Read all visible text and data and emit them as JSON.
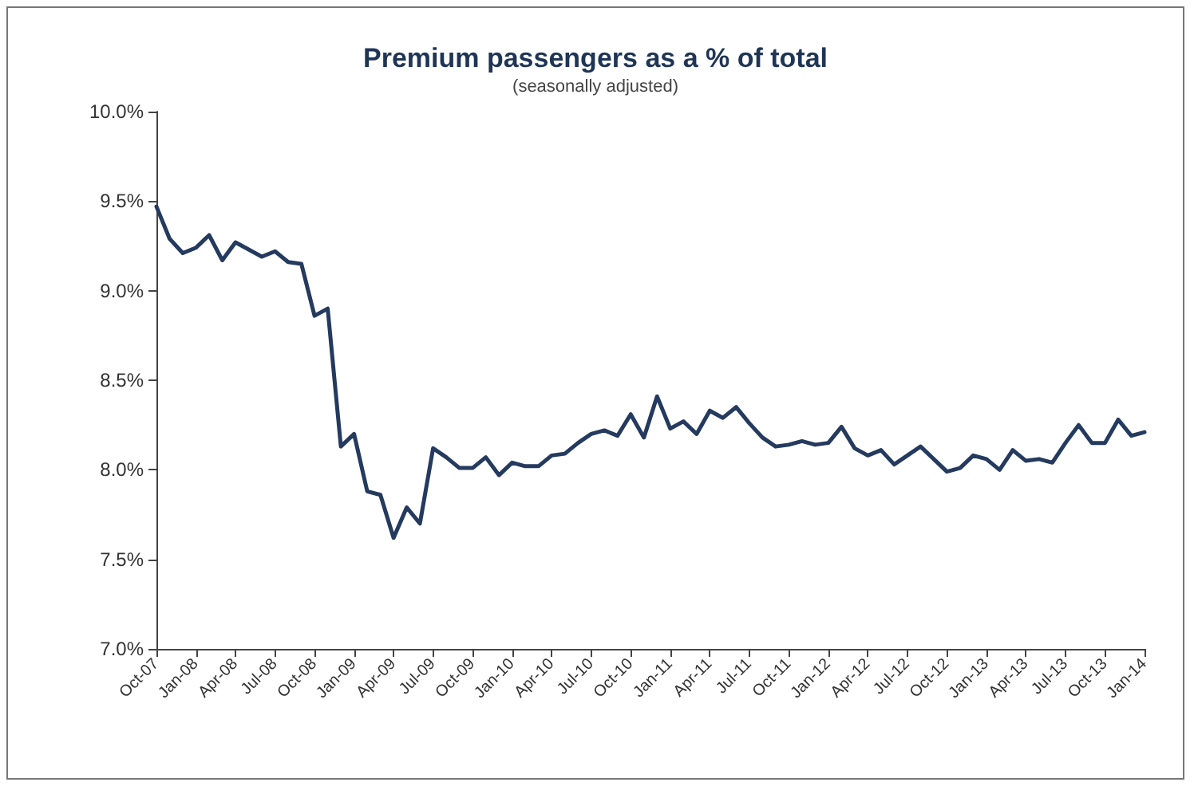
{
  "chart_data": {
    "type": "line",
    "title": "Premium passengers as a % of total",
    "subtitle": "(seasonally adjusted)",
    "categories": [
      "Oct-07",
      null,
      null,
      "Jan-08",
      null,
      null,
      "Apr-08",
      null,
      null,
      "Jul-08",
      null,
      null,
      "Oct-08",
      null,
      null,
      "Jan-09",
      null,
      null,
      "Apr-09",
      null,
      null,
      "Jul-09",
      null,
      null,
      "Oct-09",
      null,
      null,
      "Jan-10",
      null,
      null,
      "Apr-10",
      null,
      null,
      "Jul-10",
      null,
      null,
      "Oct-10",
      null,
      null,
      "Jan-11",
      null,
      null,
      "Apr-11",
      null,
      null,
      "Jul-11",
      null,
      null,
      "Oct-11",
      null,
      null,
      "Jan-12",
      null,
      null,
      "Apr-12",
      null,
      null,
      "Jul-12",
      null,
      null,
      "Oct-12",
      null,
      null,
      "Jan-13",
      null,
      null,
      "Apr-13",
      null,
      null,
      "Jul-13",
      null,
      null,
      "Oct-13",
      null,
      null,
      "Jan-14"
    ],
    "series": [
      {
        "color": "#243a5e",
        "values": [
          9.47,
          9.29,
          9.21,
          9.24,
          9.31,
          9.17,
          9.27,
          9.23,
          9.19,
          9.22,
          9.16,
          9.15,
          8.86,
          8.9,
          8.13,
          8.2,
          7.88,
          7.86,
          7.62,
          7.79,
          7.7,
          8.12,
          8.07,
          8.01,
          8.01,
          8.07,
          7.97,
          8.04,
          8.02,
          8.02,
          8.08,
          8.09,
          8.15,
          8.2,
          8.22,
          8.19,
          8.31,
          8.18,
          8.41,
          8.23,
          8.27,
          8.2,
          8.33,
          8.29,
          8.35,
          8.26,
          8.18,
          8.13,
          8.14,
          8.16,
          8.14,
          8.15,
          8.24,
          8.12,
          8.08,
          8.11,
          8.03,
          8.08,
          8.13,
          8.06,
          7.99,
          8.01,
          8.08,
          8.06,
          8.0,
          8.11,
          8.05,
          8.06,
          8.04,
          8.15,
          8.25,
          8.15,
          8.15,
          8.28,
          8.19,
          8.21
        ]
      }
    ],
    "ylim": [
      7,
      10
    ],
    "yticks": [
      {
        "value": 7,
        "label": "7.0%"
      },
      {
        "value": 7.5,
        "label": "7.5%"
      },
      {
        "value": 8,
        "label": "8.0%"
      },
      {
        "value": 8.5,
        "label": "8.5%"
      },
      {
        "value": 9,
        "label": "9.0%"
      },
      {
        "value": 9.5,
        "label": "9.5%"
      },
      {
        "value": 10,
        "label": "10.0%"
      }
    ],
    "grid": false,
    "marker": "none",
    "line_style": "solid"
  }
}
